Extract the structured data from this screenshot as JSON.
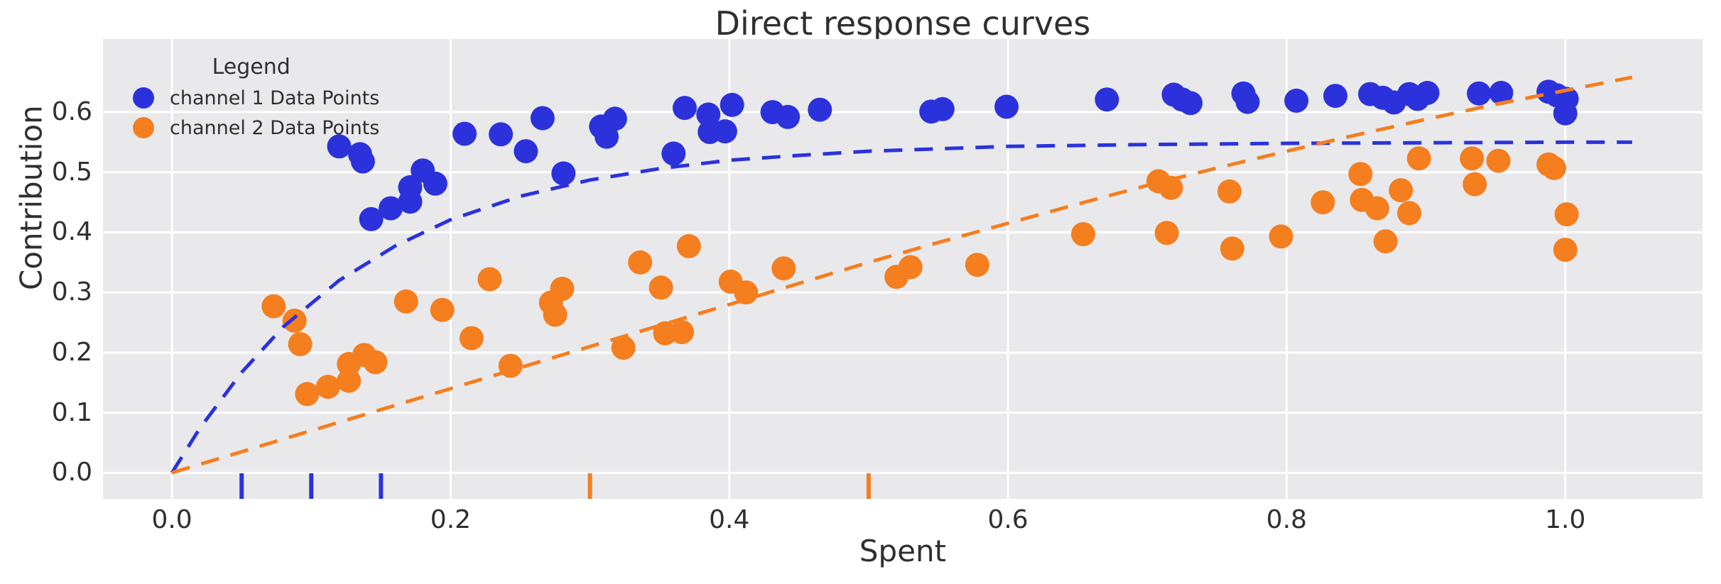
{
  "title": "Direct response curves",
  "colors": {
    "channel1": "#2B32DC",
    "channel2": "#F57E1E",
    "plot_bg": "#E9E9EC",
    "grid": "#FFFFFF",
    "text": "#2F2F2F"
  },
  "legend": {
    "title": "Legend",
    "entries": [
      {
        "label": "channel 1 Data Points",
        "color": "#2B32DC"
      },
      {
        "label": "channel 2 Data Points",
        "color": "#F57E1E"
      }
    ]
  },
  "chart_data": {
    "type": "scatter",
    "title": "Direct response curves",
    "xlabel": "Spent",
    "ylabel": "Contribution",
    "xlim": [
      -0.0495,
      1.0985
    ],
    "ylim": [
      -0.0434,
      0.7216
    ],
    "grid": true,
    "legend_position": "upper left",
    "x_ticks": [
      0.0,
      0.2,
      0.4,
      0.6,
      0.8,
      1.0
    ],
    "x_tick_labels": [
      "0.0",
      "0.2",
      "0.4",
      "0.6",
      "0.8",
      "1.0"
    ],
    "y_ticks": [
      0.0,
      0.1,
      0.2,
      0.3,
      0.4,
      0.5,
      0.6
    ],
    "y_tick_labels": [
      "0.0",
      "0.1",
      "0.2",
      "0.3",
      "0.4",
      "0.5",
      "0.6"
    ],
    "series": [
      {
        "name": "channel 1 Data Points",
        "kind": "scatter",
        "color": "#2B32DC",
        "marker_radius": 17,
        "points": [
          [
            0.12,
            0.543
          ],
          [
            0.135,
            0.53
          ],
          [
            0.137,
            0.518
          ],
          [
            0.143,
            0.422
          ],
          [
            0.157,
            0.44
          ],
          [
            0.171,
            0.451
          ],
          [
            0.171,
            0.475
          ],
          [
            0.18,
            0.503
          ],
          [
            0.189,
            0.481
          ],
          [
            0.21,
            0.564
          ],
          [
            0.236,
            0.563
          ],
          [
            0.254,
            0.535
          ],
          [
            0.266,
            0.59
          ],
          [
            0.281,
            0.498
          ],
          [
            0.308,
            0.576
          ],
          [
            0.312,
            0.559
          ],
          [
            0.318,
            0.589
          ],
          [
            0.36,
            0.531
          ],
          [
            0.368,
            0.607
          ],
          [
            0.385,
            0.596
          ],
          [
            0.386,
            0.567
          ],
          [
            0.397,
            0.568
          ],
          [
            0.402,
            0.612
          ],
          [
            0.431,
            0.6
          ],
          [
            0.442,
            0.592
          ],
          [
            0.465,
            0.604
          ],
          [
            0.545,
            0.601
          ],
          [
            0.553,
            0.605
          ],
          [
            0.599,
            0.609
          ],
          [
            0.671,
            0.621
          ],
          [
            0.719,
            0.629
          ],
          [
            0.725,
            0.621
          ],
          [
            0.731,
            0.615
          ],
          [
            0.769,
            0.631
          ],
          [
            0.772,
            0.617
          ],
          [
            0.807,
            0.619
          ],
          [
            0.835,
            0.627
          ],
          [
            0.86,
            0.63
          ],
          [
            0.869,
            0.624
          ],
          [
            0.877,
            0.616
          ],
          [
            0.888,
            0.63
          ],
          [
            0.894,
            0.622
          ],
          [
            0.901,
            0.632
          ],
          [
            0.938,
            0.631
          ],
          [
            0.954,
            0.632
          ],
          [
            0.988,
            0.634
          ],
          [
            0.994,
            0.628
          ],
          [
            1.001,
            0.622
          ],
          [
            1.0,
            0.598
          ]
        ]
      },
      {
        "name": "channel 2 Data Points",
        "kind": "scatter",
        "color": "#F57E1E",
        "marker_radius": 17,
        "points": [
          [
            0.073,
            0.277
          ],
          [
            0.088,
            0.253
          ],
          [
            0.092,
            0.214
          ],
          [
            0.097,
            0.131
          ],
          [
            0.112,
            0.143
          ],
          [
            0.127,
            0.153
          ],
          [
            0.127,
            0.181
          ],
          [
            0.138,
            0.196
          ],
          [
            0.146,
            0.184
          ],
          [
            0.168,
            0.285
          ],
          [
            0.194,
            0.271
          ],
          [
            0.215,
            0.224
          ],
          [
            0.228,
            0.322
          ],
          [
            0.243,
            0.178
          ],
          [
            0.272,
            0.283
          ],
          [
            0.275,
            0.263
          ],
          [
            0.28,
            0.306
          ],
          [
            0.324,
            0.208
          ],
          [
            0.336,
            0.35
          ],
          [
            0.351,
            0.308
          ],
          [
            0.354,
            0.232
          ],
          [
            0.366,
            0.234
          ],
          [
            0.371,
            0.377
          ],
          [
            0.401,
            0.318
          ],
          [
            0.412,
            0.3
          ],
          [
            0.439,
            0.34
          ],
          [
            0.52,
            0.326
          ],
          [
            0.53,
            0.342
          ],
          [
            0.578,
            0.346
          ],
          [
            0.654,
            0.397
          ],
          [
            0.708,
            0.485
          ],
          [
            0.714,
            0.399
          ],
          [
            0.717,
            0.474
          ],
          [
            0.759,
            0.468
          ],
          [
            0.761,
            0.373
          ],
          [
            0.796,
            0.393
          ],
          [
            0.826,
            0.45
          ],
          [
            0.853,
            0.497
          ],
          [
            0.854,
            0.454
          ],
          [
            0.865,
            0.44
          ],
          [
            0.871,
            0.385
          ],
          [
            0.882,
            0.47
          ],
          [
            0.888,
            0.432
          ],
          [
            0.895,
            0.523
          ],
          [
            0.933,
            0.523
          ],
          [
            0.935,
            0.48
          ],
          [
            0.952,
            0.519
          ],
          [
            0.988,
            0.513
          ],
          [
            0.992,
            0.507
          ],
          [
            1.001,
            0.43
          ],
          [
            1.0,
            0.371
          ]
        ]
      },
      {
        "name": "channel 1 response curve",
        "kind": "dashed-line",
        "color": "#2B32DC",
        "stroke_width": 5,
        "dash": "26 17",
        "points": [
          [
            0,
            0
          ],
          [
            0.02,
            0.074
          ],
          [
            0.05,
            0.167
          ],
          [
            0.08,
            0.243
          ],
          [
            0.12,
            0.32
          ],
          [
            0.16,
            0.377
          ],
          [
            0.2,
            0.421
          ],
          [
            0.25,
            0.46
          ],
          [
            0.3,
            0.487
          ],
          [
            0.35,
            0.506
          ],
          [
            0.4,
            0.52
          ],
          [
            0.45,
            0.528
          ],
          [
            0.5,
            0.535
          ],
          [
            0.6,
            0.543
          ],
          [
            0.7,
            0.546
          ],
          [
            0.8,
            0.548
          ],
          [
            0.9,
            0.549
          ],
          [
            1.0,
            0.55
          ],
          [
            1.048,
            0.55
          ]
        ]
      },
      {
        "name": "channel 2 response curve",
        "kind": "dashed-line",
        "color": "#F57E1E",
        "stroke_width": 5,
        "dash": "26 17",
        "points": [
          [
            0,
            0
          ],
          [
            0.05,
            0.035
          ],
          [
            0.1,
            0.07
          ],
          [
            0.15,
            0.105
          ],
          [
            0.2,
            0.14
          ],
          [
            0.25,
            0.175
          ],
          [
            0.3,
            0.21
          ],
          [
            0.35,
            0.245
          ],
          [
            0.4,
            0.28
          ],
          [
            0.45,
            0.315
          ],
          [
            0.5,
            0.35
          ],
          [
            0.55,
            0.383
          ],
          [
            0.6,
            0.415
          ],
          [
            0.65,
            0.447
          ],
          [
            0.7,
            0.478
          ],
          [
            0.75,
            0.507
          ],
          [
            0.8,
            0.535
          ],
          [
            0.85,
            0.562
          ],
          [
            0.9,
            0.588
          ],
          [
            0.95,
            0.613
          ],
          [
            1.0,
            0.636
          ],
          [
            1.048,
            0.658
          ]
        ]
      },
      {
        "name": "channel 1 spend rug",
        "kind": "rug",
        "color": "#2B32DC",
        "x": [
          0.05,
          0.1,
          0.15
        ]
      },
      {
        "name": "channel 2 spend rug",
        "kind": "rug",
        "color": "#F57E1E",
        "x": [
          0.3,
          0.5
        ]
      }
    ]
  }
}
